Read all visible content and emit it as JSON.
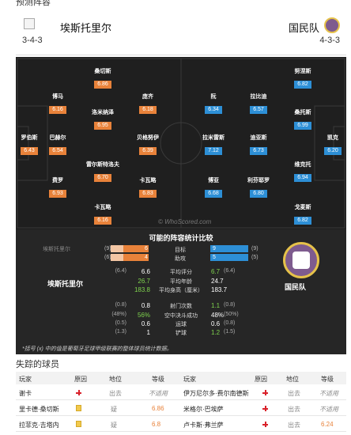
{
  "section_title": "预测阵容",
  "home": {
    "name": "埃斯托里尔",
    "formation": "3-4-3"
  },
  "away": {
    "name": "国民队",
    "formation": "4-3-3"
  },
  "watermark": "© WhoScored.com",
  "pitch_players": {
    "home": [
      {
        "name": "罗伯斯",
        "rating": "6.43"
      },
      {
        "name": "桑切斯",
        "rating": "6.86"
      },
      {
        "name": "博马",
        "rating": "6.16"
      },
      {
        "name": "庞齐",
        "rating": "6.18"
      },
      {
        "name": "洛米纳泽",
        "rating": "6.95"
      },
      {
        "name": "巴赫尔",
        "rating": "6.54"
      },
      {
        "name": "贝格努伊",
        "rating": "6.39"
      },
      {
        "name": "雷尔斯特洛夫",
        "rating": "6.70"
      },
      {
        "name": "费罗",
        "rating": "6.93"
      },
      {
        "name": "卡瓦略",
        "rating": "6.83"
      },
      {
        "name": "卡瓦略",
        "rating": "6.16"
      }
    ],
    "away": [
      {
        "name": "努涅斯",
        "rating": "6.82"
      },
      {
        "name": "阮",
        "rating": "6.34"
      },
      {
        "name": "拉比迪",
        "rating": "6.57"
      },
      {
        "name": "桑托斯",
        "rating": "6.99"
      },
      {
        "name": "拉米雷斯",
        "rating": "7.12"
      },
      {
        "name": "迪亚斯",
        "rating": "6.73"
      },
      {
        "name": "凯克",
        "rating": "6.20"
      },
      {
        "name": "维克托",
        "rating": "6.94"
      },
      {
        "name": "博亚",
        "rating": "6.68"
      },
      {
        "name": "利芬耶罗",
        "rating": "6.80"
      },
      {
        "name": "戈麦斯",
        "rating": "6.82"
      }
    ]
  },
  "stats": {
    "title": "可能的阵容统计比较",
    "home_logo_alt": "埃斯托里尔",
    "home_name": "埃斯托里尔",
    "away_name": "国民队",
    "bars": [
      {
        "label": "目标",
        "home": "6",
        "home_paren": "(9)",
        "away": "9",
        "away_paren": "(9)",
        "home_frac": 0.67,
        "away_frac": 1.0
      },
      {
        "label": "助攻",
        "home": "4",
        "home_paren": "(6)",
        "away": "5",
        "away_paren": "(5)",
        "home_frac": 0.67,
        "away_frac": 1.0
      }
    ],
    "rows": [
      {
        "label": "平均评分",
        "home_paren": "(6.4)",
        "home": "6.6",
        "away": "6.7",
        "away_paren": "(6.4)",
        "home_green": false,
        "away_green": true
      },
      {
        "label": "平均年龄",
        "home_paren": "",
        "home": "26.7",
        "away": "24.7",
        "away_paren": "",
        "home_green": true,
        "away_green": false
      },
      {
        "label": "平均身高（厘米）",
        "home_paren": "",
        "home": "183.8",
        "away": "183.7",
        "away_paren": "",
        "home_green": true,
        "away_green": false
      },
      {
        "label": "射门次数",
        "home_paren": "(0.8)",
        "home": "0.8",
        "away": "1.1",
        "away_paren": "(0.8)",
        "home_green": false,
        "away_green": true
      },
      {
        "label": "空中决斗成功",
        "home_paren": "(48%)",
        "home": "56%",
        "away": "48%",
        "away_paren": "(50%)",
        "home_green": true,
        "away_green": false
      },
      {
        "label": "运球",
        "home_paren": "(0.5)",
        "home": "0.6",
        "away": "0.6",
        "away_paren": "(0.8)",
        "home_green": false,
        "away_green": false
      },
      {
        "label": "铲球",
        "home_paren": "(1.3)",
        "home": "1",
        "away": "1.2",
        "away_paren": "(1.5)",
        "home_green": false,
        "away_green": true
      }
    ],
    "footnote": "*括号 (x) 中的值是葡萄牙足球甲级联赛的整体球员统计数据。"
  },
  "missing": {
    "title": "失踪的球员",
    "headers": {
      "player": "玩家",
      "reason": "原因",
      "status": "地位",
      "rating": "等级"
    },
    "rows": [
      {
        "home_player": "谢卡",
        "home_reason": "injury",
        "home_status": "出去",
        "home_rating": "不适用",
        "away_player": "伊万尼尔多·费尔南德斯",
        "away_reason": "injury",
        "away_status": "出去",
        "away_rating": "不适用"
      },
      {
        "home_player": "里卡德·桑切斯",
        "home_reason": "card",
        "home_status": "疑",
        "home_rating": "6.86",
        "away_player": "米格尔·巴埃萨",
        "away_reason": "injury",
        "away_status": "出去",
        "away_rating": "不适用"
      },
      {
        "home_player": "拉菲克·吉塔内",
        "home_reason": "card",
        "home_status": "疑",
        "home_rating": "6.8",
        "away_player": "卢卡斯·弗兰萨",
        "away_reason": "injury",
        "away_status": "出去",
        "away_rating": "6.24"
      }
    ]
  },
  "colors": {
    "home": "#e8823a",
    "away": "#2d8fd6",
    "pitch": "#1f1f1f",
    "stat_bg": "#262626",
    "green": "#7fd34e"
  }
}
